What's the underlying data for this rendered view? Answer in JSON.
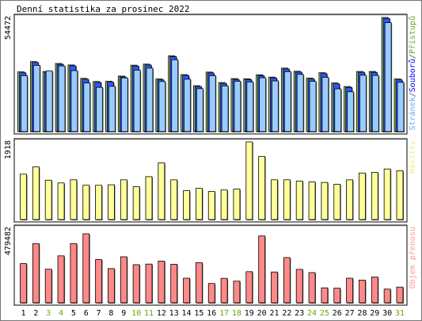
{
  "chart_data": {
    "type": "bar",
    "title": "Denní statistika za prosinec 2022",
    "categories": [
      "1",
      "2",
      "3",
      "4",
      "5",
      "6",
      "7",
      "8",
      "9",
      "10",
      "11",
      "12",
      "13",
      "14",
      "15",
      "16",
      "17",
      "18",
      "19",
      "20",
      "21",
      "22",
      "23",
      "24",
      "25",
      "26",
      "27",
      "28",
      "29",
      "30",
      "31"
    ],
    "weekend_days": [
      "3",
      "4",
      "10",
      "11",
      "17",
      "18",
      "24",
      "25",
      "31"
    ],
    "panels": [
      {
        "name": "requests",
        "ymax_label": "54472",
        "legend": [
          "Stránek",
          "Souborů",
          "Přístupů"
        ],
        "legend_colors": [
          "#66aaff",
          "#0000ff",
          "#66aa33"
        ],
        "series": [
          {
            "name": "Přístupů",
            "color": "#99cc66",
            "values": [
              28500,
              33400,
              28700,
              32500,
              31800,
              25400,
              23900,
              24000,
              26500,
              31700,
              32200,
              25100,
              36200,
              27200,
              21900,
              28400,
              23400,
              25300,
              25200,
              27100,
              26000,
              30300,
              28800,
              25500,
              28100,
              23200,
              21500,
              28700,
              28700,
              54472,
              25100
            ]
          },
          {
            "name": "Souborů",
            "color": "#3355ff",
            "values": [
              28100,
              33000,
              28300,
              32100,
              31400,
              25000,
              23500,
              23600,
              26100,
              31300,
              31800,
              24700,
              35800,
              26800,
              21500,
              28000,
              23000,
              24900,
              24800,
              26700,
              25600,
              29900,
              28400,
              25100,
              27700,
              22800,
              21100,
              28300,
              28300,
              54000,
              24700
            ]
          },
          {
            "name": "Stránek",
            "color": "#99ccff",
            "values": [
              26700,
              31600,
              28900,
              31300,
              29100,
              23200,
              21100,
              21600,
              25600,
              29300,
              30300,
              23900,
              34300,
              25000,
              20500,
              26700,
              21800,
              24000,
              23700,
              25700,
              24200,
              28600,
              27300,
              24000,
              25900,
              20400,
              19000,
              26900,
              26800,
              52000,
              23500
            ]
          }
        ]
      },
      {
        "name": "visits",
        "ymax_label": "1918",
        "legend": [
          "Návštěv"
        ],
        "legend_colors": [
          "#eeee99"
        ],
        "series": [
          {
            "name": "Návštěv",
            "color": "#ffff99",
            "values": [
              1120,
              1300,
              973,
              904,
              982,
              847,
              846,
              859,
              981,
              812,
              1059,
              1401,
              981,
              713,
              771,
              693,
              730,
              752,
              1918,
              1560,
              982,
              982,
              949,
              929,
              916,
              871,
              981,
              1149,
              1164,
              1249,
              1206
            ]
          }
        ]
      },
      {
        "name": "traffic",
        "ymax_label": "479482",
        "legend": [
          "Objem přenosu"
        ],
        "legend_colors": [
          "#ff9999"
        ],
        "series": [
          {
            "name": "Objem přenosu",
            "color": "#ff8888",
            "values": [
              252000,
              381000,
              216000,
              302000,
              381000,
              444000,
              278000,
              220000,
              296000,
              245000,
              249000,
              268000,
              248000,
              158000,
              258000,
              124000,
              157000,
              139000,
              200000,
              430000,
              198000,
              291000,
              215000,
              194000,
              96000,
              94000,
              158000,
              146000,
              166000,
              88000,
              101000
            ]
          }
        ]
      }
    ]
  }
}
